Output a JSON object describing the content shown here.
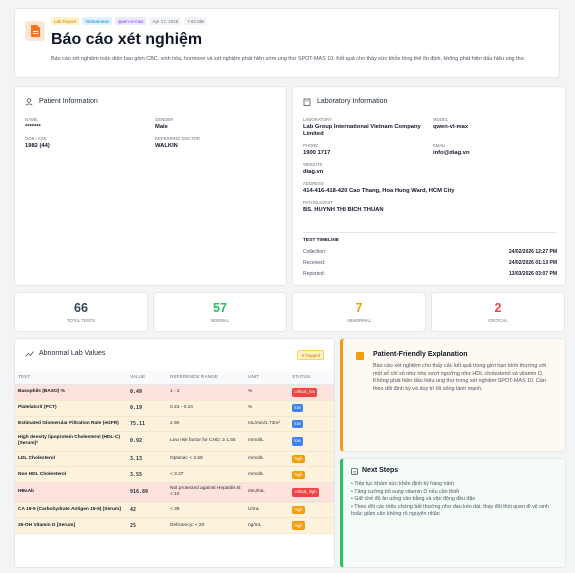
{
  "header": {
    "tags": [
      "Lab Report",
      "Vietnamese",
      "qwen-vl-max",
      "Apr 17, 2026",
      "7.62 MB"
    ],
    "title": "Báo cáo xét nghiệm",
    "description": "Báo cáo xét nghiệm toàn diện bao gồm CBC, sinh hóa, hormone và xét nghiệm phát hiện sớm ung thư SPOT-MAS 10. Kết quả cho thấy sức khỏe tổng thể ổn định, không phát hiện dấu hiệu ung thư."
  },
  "patient": {
    "title": "Patient Information",
    "fields": [
      {
        "label": "NAME",
        "value": "*******"
      },
      {
        "label": "GENDER",
        "value": "Male"
      },
      {
        "label": "DOB / AGE",
        "value": "1982 (44)"
      },
      {
        "label": "REFERRING DOCTOR",
        "value": "WALKIN"
      }
    ]
  },
  "laboratory": {
    "title": "Laboratory Information",
    "fields": [
      {
        "label": "LABORATORY",
        "value": "Lab Group International Vietnam Company Limited"
      },
      {
        "label": "MODEL",
        "value": "qwen-vl-max"
      },
      {
        "label": "PHONE",
        "value": "1900 1717"
      },
      {
        "label": "EMAIL",
        "value": "info@diag.vn"
      },
      {
        "label": "WEBSITE",
        "value": "diag.vn"
      },
      {
        "label": "ADDRESS",
        "value": "414-416-418-420 Cao Thang, Hoa Hung Ward, HCM City"
      },
      {
        "label": "PATHOLOGIST",
        "value": "BS. HUYNH THI BICH THUAN"
      }
    ],
    "timeline": {
      "title": "TEST TIMELINE",
      "rows": [
        {
          "label": "Collection:",
          "value": "24/02/2026 12:27 PM"
        },
        {
          "label": "Received:",
          "value": "24/02/2026 01:13 PM"
        },
        {
          "label": "Reported:",
          "value": "13/03/2026 03:07 PM"
        }
      ]
    }
  },
  "stats": [
    {
      "value": 66,
      "label": "TOTAL TESTS"
    },
    {
      "value": 57,
      "label": "NORMAL"
    },
    {
      "value": 7,
      "label": "ABNORMAL"
    },
    {
      "value": 2,
      "label": "CRITICAL"
    }
  ],
  "abnormal": {
    "title": "Abnormal Lab Values",
    "badge": "9 flagged",
    "columns": [
      "TEST",
      "VALUE",
      "REFERENCE RANGE",
      "UNIT",
      "STATUS"
    ],
    "rows": [
      [
        "Basophils (BASO) %",
        0.49,
        "1 - 2",
        "%",
        "critical_low"
      ],
      [
        "Platelatcrit (PCT)",
        0.19,
        "0.23 - 0.24",
        "%",
        "low"
      ],
      [
        "Estimated Glomerular Filtration Rate (eGFR)",
        75.11,
        "≥ 90",
        "mL/min/1.73m²",
        "low"
      ],
      [
        "High density lipoprotein Cholesterol (HDL-C) [Serum]*",
        0.92,
        "Low risk factor for CHD: ≥ 1.55",
        "mmol/L",
        "low"
      ],
      [
        "LDL Cholesterol",
        3.13,
        "Optimal: < 2.59",
        "mmol/L",
        "high"
      ],
      [
        "Non HDL Cholesterol",
        3.55,
        "< 3.37",
        "mmol/L",
        "high"
      ],
      [
        "HBsAb",
        916.89,
        "Not protected against Hepatitis B: < 10",
        "mIU/mL",
        "critical_high"
      ],
      [
        "CA 19-9 (Carbohydrate Antigen 19-9) [Serum]",
        42,
        "< 39",
        "U/mL",
        "high"
      ],
      [
        "25-OH Vitamin D [Serum]",
        25,
        "Deficiency: < 20",
        "ng/mL",
        "high"
      ]
    ]
  },
  "explanation": {
    "title": "Patient-Friendly Explanation",
    "text": "Báo cáo xét nghiệm cho thấy các kết quả trong giới hạn bình thường với một số chỉ số như nhẹ vượt ngưỡng như HDL cholesterol và vitamin D. Không phát hiện dấu hiệu ung thư trong xét nghiệm SPOT-MAS 10. Cần theo dõi định kỳ và duy trì lối sống lành mạnh."
  },
  "next_steps": {
    "title": "Next Steps",
    "items": [
      "Tiếp tục khám sức khỏe định kỳ hàng năm",
      "Tăng cường bổ sung vitamin D nếu cần thiết",
      "Giữ chế độ ăn uống cân bằng và vận động đều đặn",
      "Theo dõi các triệu chứng bất thường như đau kéo dài, thay đổi thói quen đi vệ sinh hoặc giảm cân không rõ nguyên nhân"
    ]
  }
}
